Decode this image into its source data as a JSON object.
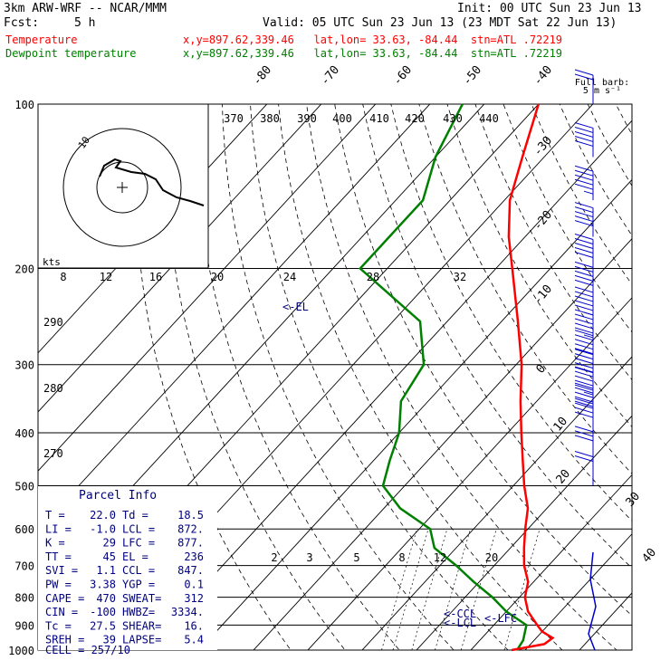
{
  "header": {
    "model": "3km ARW-WRF -- NCAR/MMM",
    "init": "Init: 00 UTC Sun 23 Jun 13",
    "fcst_label": "Fcst:",
    "fcst_value": "5 h",
    "valid": "Valid: 05 UTC Sun 23 Jun 13 (23 MDT Sat 22 Jun 13)",
    "temp_label": "Temperature",
    "dew_label": "Dewpoint temperature",
    "loc_text": "x,y=897.62,339.46   lat,lon= 33.63, -84.44  stn=ATL .72219"
  },
  "colors": {
    "temperature": "#ff0000",
    "dewpoint": "#008000",
    "parcel": "#0000ff",
    "text": "#000080"
  },
  "chart_data": {
    "type": "line",
    "title": "",
    "pressure_levels": [
      "100",
      "200",
      "300",
      "400",
      "500",
      "600",
      "700",
      "800",
      "900",
      "1000"
    ],
    "temp_iso_labels": [
      "-80",
      "-70",
      "-60",
      "-50",
      "-40",
      "-30",
      "-20",
      "-10",
      "0",
      "10",
      "20",
      "30",
      "40"
    ],
    "theta_labels": [
      "370",
      "380",
      "390",
      "400",
      "410",
      "420",
      "430",
      "440",
      "290",
      "280",
      "270"
    ],
    "mixing_ratio_labels": [
      "2",
      "3",
      "5",
      "8",
      "12",
      "20"
    ],
    "hodo_labels": [
      "kts",
      "8",
      "12",
      "16",
      "20",
      "24",
      "28",
      "32"
    ],
    "hodo_ring_label": "10",
    "wind_label": "Full barb:",
    "wind_label2": "5 m s⁻¹",
    "el_label": "<-EL",
    "lcl_label": "<-LCL",
    "ccl_label": "<-CCL",
    "lfc_label": "<-LFC",
    "temp_profile": [
      [
        1000,
        17.5
      ],
      [
        975,
        22.5
      ],
      [
        950,
        23
      ],
      [
        925,
        20
      ],
      [
        900,
        18
      ],
      [
        850,
        14
      ],
      [
        800,
        11
      ],
      [
        750,
        9
      ],
      [
        700,
        5.5
      ],
      [
        650,
        2.5
      ],
      [
        600,
        -0.5
      ],
      [
        550,
        -3.5
      ],
      [
        500,
        -8
      ],
      [
        450,
        -12.5
      ],
      [
        400,
        -17.5
      ],
      [
        350,
        -23
      ],
      [
        300,
        -29
      ],
      [
        250,
        -37
      ],
      [
        200,
        -47
      ],
      [
        175,
        -53
      ],
      [
        150,
        -59
      ],
      [
        125,
        -64
      ],
      [
        100,
        -70
      ]
    ],
    "dew_profile": [
      [
        1000,
        18.5
      ],
      [
        960,
        18
      ],
      [
        900,
        16
      ],
      [
        850,
        10
      ],
      [
        800,
        5
      ],
      [
        750,
        -1
      ],
      [
        700,
        -7
      ],
      [
        650,
        -14
      ],
      [
        600,
        -18
      ],
      [
        550,
        -27
      ],
      [
        500,
        -34
      ],
      [
        450,
        -37
      ],
      [
        400,
        -40
      ],
      [
        350,
        -45
      ],
      [
        300,
        -47
      ],
      [
        250,
        -55
      ],
      [
        200,
        -75
      ],
      [
        175,
        -75
      ],
      [
        150,
        -75
      ],
      [
        125,
        -80
      ],
      [
        100,
        -84
      ]
    ],
    "parcel_info": {
      "title": "Parcel Info",
      "rows": [
        [
          "T  =",
          "22.0",
          "Td =",
          "18.5"
        ],
        [
          "LI =",
          "-1.0",
          "LCL =",
          "872."
        ],
        [
          "K  =",
          "29",
          "LFC =",
          "877."
        ],
        [
          "TT =",
          "45",
          "EL =",
          "236"
        ],
        [
          "SVI =",
          "1.1",
          "CCL =",
          "847."
        ],
        [
          "PW =",
          "3.38",
          "YGP =",
          "0.1"
        ],
        [
          "CAPE =",
          "470",
          "SWEAT=",
          "312"
        ],
        [
          "CIN =",
          "-100",
          "HWBZ=",
          "3334."
        ],
        [
          "Tc =",
          "27.5",
          "SHEAR=",
          "16."
        ],
        [
          "SREH =",
          "39",
          "LAPSE=",
          "5.4"
        ]
      ],
      "cell": "CELL = 257/10"
    },
    "wind_profile": [
      [
        100,
        260,
        10
      ],
      [
        125,
        255,
        25
      ],
      [
        150,
        250,
        28
      ],
      [
        175,
        245,
        30
      ],
      [
        200,
        245,
        32
      ],
      [
        225,
        245,
        35
      ],
      [
        250,
        245,
        38
      ],
      [
        275,
        245,
        38
      ],
      [
        300,
        245,
        35
      ],
      [
        325,
        245,
        32
      ],
      [
        350,
        250,
        28
      ],
      [
        375,
        250,
        25
      ],
      [
        400,
        255,
        20
      ],
      [
        450,
        260,
        15
      ],
      [
        500,
        260,
        12
      ]
    ]
  }
}
